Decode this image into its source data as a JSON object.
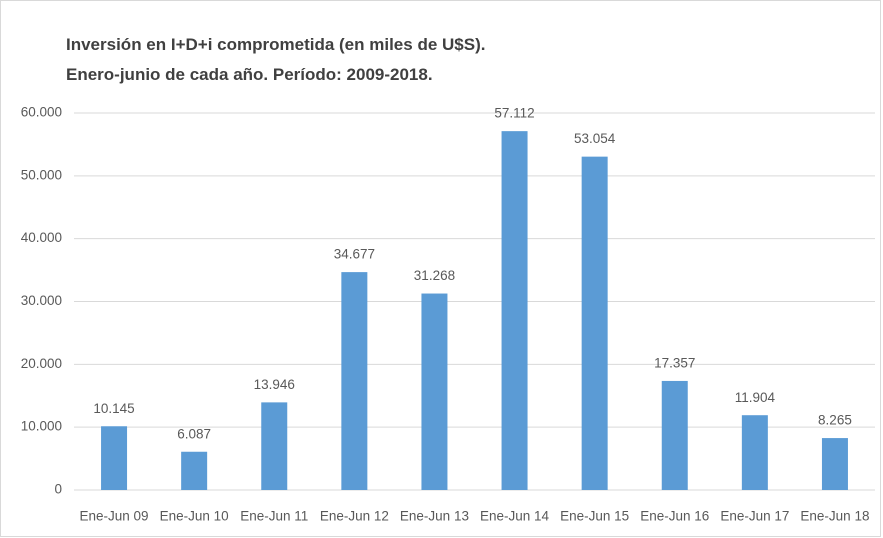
{
  "chart_data": {
    "type": "bar",
    "title": "Inversión en I+D+i comprometida (en miles de U$S).",
    "subtitle": "Enero-junio de cada año. Período: 2009-2018.",
    "categories": [
      "Ene-Jun 09",
      "Ene-Jun 10",
      "Ene-Jun 11",
      "Ene-Jun 12",
      "Ene-Jun 13",
      "Ene-Jun 14",
      "Ene-Jun 15",
      "Ene-Jun 16",
      "Ene-Jun 17",
      "Ene-Jun 18"
    ],
    "values": [
      10145,
      6087,
      13946,
      34677,
      31268,
      57112,
      53054,
      17357,
      11904,
      8265
    ],
    "value_labels": [
      "10.145",
      "6.087",
      "13.946",
      "34.677",
      "31.268",
      "57.112",
      "53.054",
      "17.357",
      "11.904",
      "8.265"
    ],
    "color": "#5b9bd5",
    "ylim": [
      0,
      60000
    ],
    "yticks": [
      0,
      {
        "value": 10000,
        "label": "10.000"
      },
      {
        "value": 20000,
        "label": "20.000"
      },
      {
        "value": 30000,
        "label": "30.000"
      },
      {
        "value": 40000,
        "label": "40.000"
      },
      {
        "value": 50000,
        "label": "50.000"
      },
      {
        "value": 60000,
        "label": "60.000"
      }
    ],
    "grid": true
  }
}
